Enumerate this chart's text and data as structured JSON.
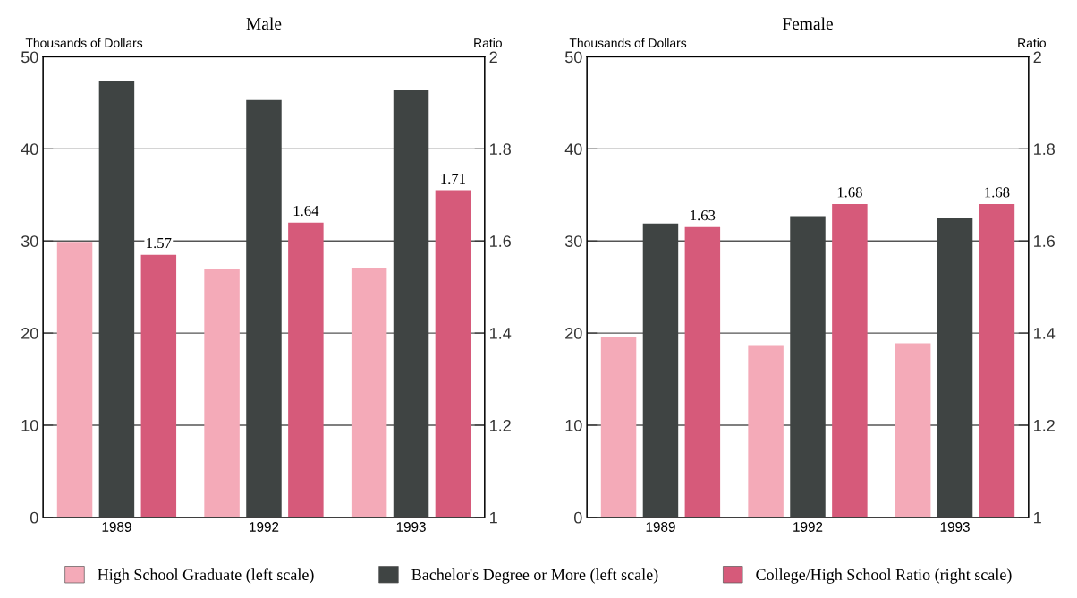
{
  "chart_data": [
    {
      "type": "bar",
      "title": "Male",
      "ylabel": "Thousands of Dollars",
      "y2label": "Ratio",
      "categories": [
        "1989",
        "1992",
        "1993"
      ],
      "series": [
        {
          "name": "High School Graduate (left scale)",
          "color": "#f4aab8",
          "values": [
            29.9,
            27.0,
            27.1
          ]
        },
        {
          "name": "Bachelor's Degree or More (left scale)",
          "color": "#3f4443",
          "values": [
            47.4,
            45.3,
            46.4
          ]
        },
        {
          "name": "College/High School Ratio (right scale)",
          "color": "#d65a7a",
          "axis": "y2",
          "values": [
            1.57,
            1.64,
            1.71
          ],
          "value_labels": [
            "1.57",
            "1.64",
            "1.71"
          ]
        }
      ],
      "ylim": [
        0,
        50
      ],
      "yticks": [
        0,
        10,
        20,
        30,
        40,
        50
      ],
      "y2lim": [
        1,
        2
      ],
      "y2ticks": [
        1,
        1.2,
        1.4,
        1.6,
        1.8,
        2
      ],
      "grid": "y",
      "legend": "bottom"
    },
    {
      "type": "bar",
      "title": "Female",
      "ylabel": "Thousands of Dollars",
      "y2label": "Ratio",
      "categories": [
        "1989",
        "1992",
        "1993"
      ],
      "series": [
        {
          "color": "#f4aab8",
          "values": [
            19.6,
            18.7,
            18.9
          ]
        },
        {
          "color": "#3f4443",
          "values": [
            31.9,
            32.7,
            32.5
          ]
        },
        {
          "color": "#d65a7a",
          "axis": "y2",
          "values": [
            1.63,
            1.68,
            1.68
          ],
          "value_labels": [
            "1.63",
            "1.68",
            "1.68"
          ]
        }
      ],
      "ylim": [
        0,
        50
      ],
      "yticks": [
        0,
        10,
        20,
        30,
        40,
        50
      ],
      "y2lim": [
        1,
        2
      ],
      "y2ticks": [
        1,
        1.2,
        1.4,
        1.6,
        1.8,
        2
      ],
      "grid": "y"
    }
  ]
}
